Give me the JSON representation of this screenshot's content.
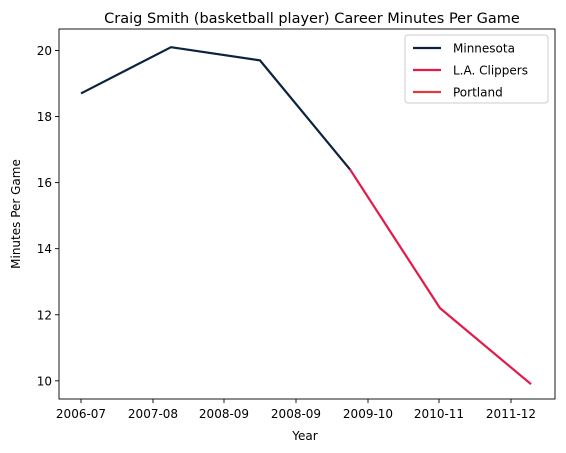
{
  "chart_data": {
    "type": "line",
    "title": "Craig Smith (basketball player) Career Minutes Per Game",
    "xlabel": "Year",
    "ylabel": "Minutes Per Game",
    "x_ticks": [
      "2006-07",
      "2007-08",
      "2008-09",
      "2008-09",
      "2009-10",
      "2010-11",
      "2011-12"
    ],
    "ylim": [
      9.45,
      20.65
    ],
    "y_ticks": [
      10,
      12,
      14,
      16,
      18,
      20
    ],
    "grid": false,
    "legend_position": "top-right",
    "series": [
      {
        "name": "Minnesota",
        "color": "#0c2340",
        "points": [
          {
            "x": "2006-07",
            "y": 18.7
          },
          {
            "x": "2007-08",
            "y": 20.1
          },
          {
            "x": "2008-09",
            "y": 19.7
          },
          {
            "x": "2009-10",
            "y": 16.4
          }
        ]
      },
      {
        "name": "L.A. Clippers",
        "color": "#e31b4b",
        "points": [
          {
            "x": "2009-10",
            "y": 16.4
          },
          {
            "x": "2010-11",
            "y": 12.2
          },
          {
            "x": "2011-12",
            "y": 9.9
          }
        ]
      },
      {
        "name": "Portland",
        "color": "#e03a3e",
        "points": []
      }
    ]
  }
}
